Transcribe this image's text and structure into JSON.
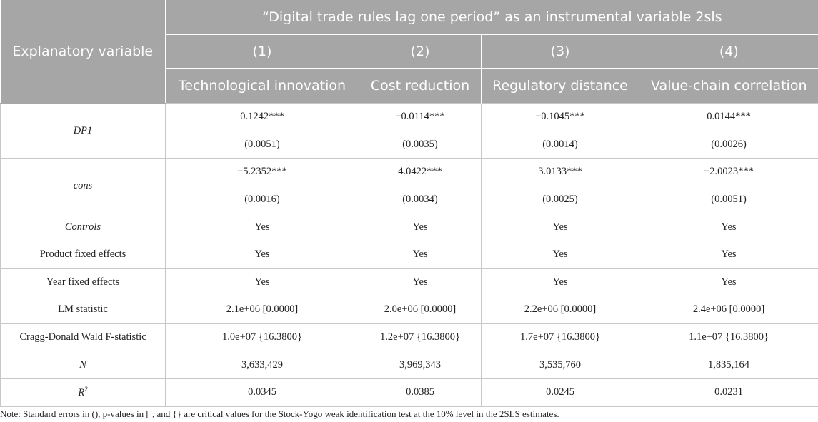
{
  "header": {
    "title": "“Digital trade rules lag one period” as an instrumental variable 2sls",
    "explanatory": "Explanatory variable",
    "col_nums": [
      "(1)",
      "(2)",
      "(3)",
      "(4)"
    ],
    "col_names": [
      "Technological innovation",
      "Cost reduction",
      "Regulatory distance",
      "Value-chain correlation"
    ]
  },
  "rows": {
    "dp1": {
      "label": "DP1",
      "coef": [
        "0.1242***",
        "−0.0114***",
        "−0.1045***",
        "0.0144***"
      ],
      "se": [
        "(0.0051)",
        "(0.0035)",
        "(0.0014)",
        "(0.0026)"
      ]
    },
    "cons": {
      "label": "cons",
      "coef": [
        "−5.2352***",
        "4.0422***",
        "3.0133***",
        "−2.0023***"
      ],
      "se": [
        "(0.0016)",
        "(0.0034)",
        "(0.0025)",
        "(0.0051)"
      ]
    },
    "controls": {
      "label": "Controls",
      "vals": [
        "Yes",
        "Yes",
        "Yes",
        "Yes"
      ]
    },
    "product_fe": {
      "label": "Product fixed effects",
      "vals": [
        "Yes",
        "Yes",
        "Yes",
        "Yes"
      ]
    },
    "year_fe": {
      "label": "Year fixed effects",
      "vals": [
        "Yes",
        "Yes",
        "Yes",
        "Yes"
      ]
    },
    "lm": {
      "label": "LM statistic",
      "vals": [
        "2.1e+06 [0.0000]",
        "2.0e+06 [0.0000]",
        "2.2e+06 [0.0000]",
        "2.4e+06 [0.0000]"
      ]
    },
    "cd": {
      "label": "Cragg-Donald Wald F-statistic",
      "vals": [
        "1.0e+07 {16.3800}",
        "1.2e+07 {16.3800}",
        "1.7e+07 {16.3800}",
        "1.1e+07 {16.3800}"
      ]
    },
    "n": {
      "label": "N",
      "vals": [
        "3,633,429",
        "3,969,343",
        "3,535,760",
        "1,835,164"
      ]
    },
    "r2": {
      "label_base": "R",
      "label_sup": "2",
      "vals": [
        "0.0345",
        "0.0385",
        "0.0245",
        "0.0231"
      ]
    }
  },
  "note": "Note: Standard errors in (), p-values in [], and {} are critical values for the Stock-Yogo weak identification test at the 10% level in the 2SLS estimates."
}
